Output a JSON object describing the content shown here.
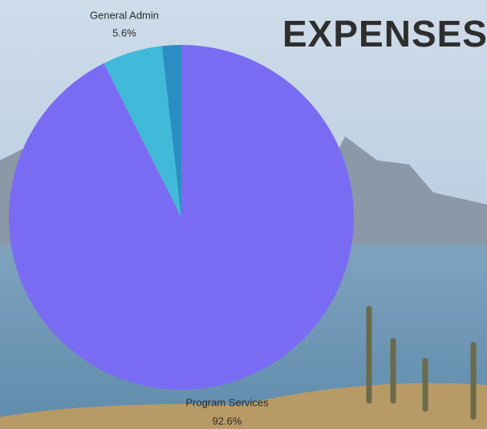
{
  "chart_data": {
    "type": "pie",
    "title": "EXPENSES",
    "categories": [
      "Program Services",
      "General Admin",
      null
    ],
    "values": [
      92.6,
      5.6,
      1.8
    ],
    "value_labels": [
      "92.6%",
      "5.6%",
      null
    ],
    "colors": [
      "#7a6cf2",
      "#41b9d9",
      "#2a8ec2"
    ]
  }
}
